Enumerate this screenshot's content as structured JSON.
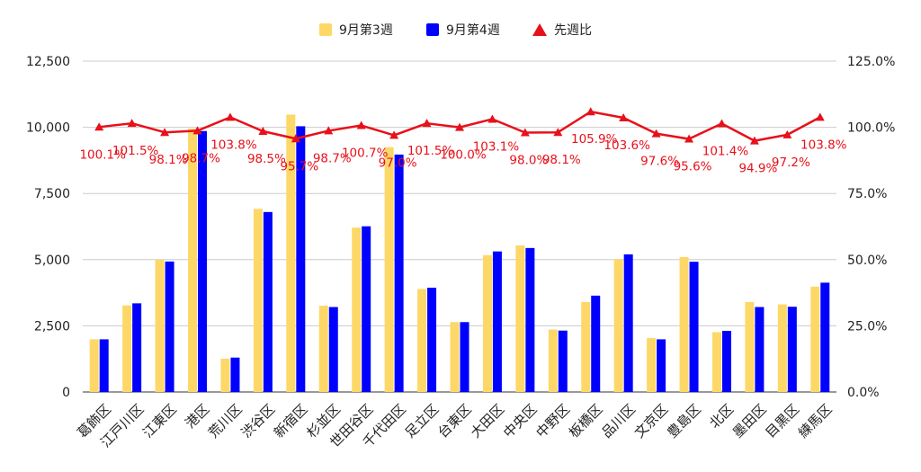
{
  "colors": {
    "background": "#ffffff",
    "grid": "#cccccc",
    "axis_text": "#222222",
    "series_week3": "#fdd868",
    "series_week4": "#0000ff",
    "ratio_line": "#e8101a"
  },
  "chart_data": {
    "type": "bar",
    "title": "",
    "xlabel": "",
    "ylabel": "",
    "legend_position": "top-center",
    "grid": true,
    "ylim": [
      0,
      12500
    ],
    "y_ticks": [
      "0",
      "2,500",
      "5,000",
      "7,500",
      "10,000",
      "12,500"
    ],
    "y2lim": [
      0,
      125
    ],
    "y2_ticks": [
      "0.0%",
      "25.0%",
      "50.0%",
      "75.0%",
      "100.0%",
      "125.0%"
    ],
    "categories": [
      "葛飾区",
      "江戸川区",
      "江東区",
      "港区",
      "荒川区",
      "渋谷区",
      "新宿区",
      "杉並区",
      "世田谷区",
      "千代田区",
      "足立区",
      "台東区",
      "大田区",
      "中央区",
      "中野区",
      "板橋区",
      "品川区",
      "文京区",
      "豊島区",
      "北区",
      "墨田区",
      "目黒区",
      "練馬区"
    ],
    "series": [
      {
        "name": "9月第3週",
        "type": "bar",
        "axis": "left",
        "values": [
          1990,
          3270,
          5000,
          9950,
          1260,
          6920,
          10480,
          3260,
          6210,
          9250,
          3890,
          2640,
          5170,
          5540,
          2360,
          3400,
          5020,
          2040,
          5100,
          2260,
          3400,
          3310,
          3980
        ]
      },
      {
        "name": "9月第4週",
        "type": "bar",
        "axis": "left",
        "values": [
          1990,
          3350,
          4930,
          9860,
          1300,
          6800,
          10040,
          3210,
          6260,
          8970,
          3940,
          2640,
          5310,
          5440,
          2320,
          3640,
          5200,
          1990,
          4920,
          2310,
          3210,
          3220,
          4130
        ]
      },
      {
        "name": "先週比",
        "type": "line",
        "axis": "right",
        "values": [
          100.1,
          101.5,
          98.1,
          98.7,
          103.8,
          98.5,
          95.7,
          98.7,
          100.7,
          97.0,
          101.5,
          100.0,
          103.1,
          98.0,
          98.1,
          105.9,
          103.6,
          97.6,
          95.6,
          101.4,
          94.9,
          97.2,
          103.8
        ],
        "labels": [
          "100.1%",
          "101.5%",
          "98.1%",
          "98.7%",
          "103.8%",
          "98.5%",
          "95.7%",
          "98.7%",
          "100.7%",
          "97.0%",
          "101.5%",
          "100.0%",
          "103.1%",
          "98.0%",
          "98.1%",
          "105.9%",
          "103.6%",
          "97.6%",
          "95.6%",
          "101.4%",
          "94.9%",
          "97.2%",
          "103.8%"
        ]
      }
    ]
  }
}
